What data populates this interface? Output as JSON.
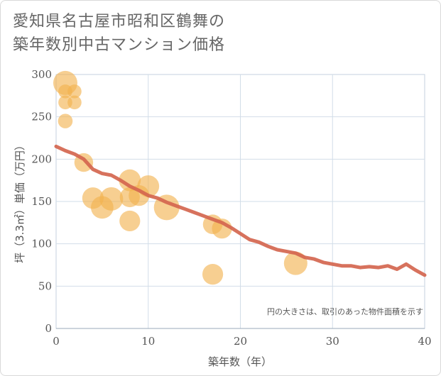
{
  "title_lines": [
    "愛知県名古屋市昭和区鶴舞の",
    "築年数別中古マンション価格"
  ],
  "chart_data": {
    "type": "scatter",
    "xlabel": "築年数（年）",
    "ylabel": "坪（3.3㎡）単価（万円）",
    "xlim": [
      0,
      40
    ],
    "ylim": [
      0,
      300
    ],
    "x_ticks": [
      0,
      10,
      20,
      30,
      40
    ],
    "y_ticks": [
      0,
      50,
      100,
      150,
      200,
      250,
      300
    ],
    "grid": true,
    "note": "円の大きさは、取引のあった物件面積を示す",
    "colors": {
      "bubble": "#f2b24d",
      "trend": "#d4664f",
      "grid": "#d2dde8"
    },
    "bubbles": [
      {
        "x": 1,
        "y": 290,
        "size": 3
      },
      {
        "x": 1,
        "y": 280,
        "size": 0.6
      },
      {
        "x": 2,
        "y": 280,
        "size": 0.6
      },
      {
        "x": 1,
        "y": 267,
        "size": 0.6
      },
      {
        "x": 2,
        "y": 267,
        "size": 0.6
      },
      {
        "x": 1,
        "y": 245,
        "size": 0.7
      },
      {
        "x": 3,
        "y": 196,
        "size": 1.5
      },
      {
        "x": 4,
        "y": 154,
        "size": 2.2
      },
      {
        "x": 5,
        "y": 143,
        "size": 2.5
      },
      {
        "x": 6,
        "y": 153,
        "size": 2.8
      },
      {
        "x": 8,
        "y": 175,
        "size": 2.3
      },
      {
        "x": 8,
        "y": 155,
        "size": 1.8
      },
      {
        "x": 9,
        "y": 157,
        "size": 2.0
      },
      {
        "x": 10,
        "y": 168,
        "size": 2.3
      },
      {
        "x": 8,
        "y": 127,
        "size": 2.0
      },
      {
        "x": 12,
        "y": 143,
        "size": 3.5
      },
      {
        "x": 17,
        "y": 123,
        "size": 1.7
      },
      {
        "x": 18,
        "y": 118,
        "size": 1.8
      },
      {
        "x": 17,
        "y": 64,
        "size": 2.0
      },
      {
        "x": 26,
        "y": 77,
        "size": 2.8
      }
    ],
    "trend": {
      "x": [
        0,
        1,
        2,
        3,
        4,
        5,
        6,
        7,
        8,
        9,
        10,
        11,
        12,
        13,
        14,
        15,
        16,
        17,
        18,
        19,
        20,
        21,
        22,
        23,
        24,
        25,
        26,
        27,
        28,
        29,
        30,
        31,
        32,
        33,
        34,
        35,
        36,
        37,
        38,
        39,
        40
      ],
      "y": [
        215,
        210,
        206,
        200,
        188,
        183,
        181,
        175,
        168,
        163,
        157,
        154,
        149,
        145,
        141,
        137,
        133,
        129,
        125,
        119,
        112,
        105,
        102,
        97,
        93,
        91,
        89,
        84,
        82,
        78,
        76,
        74,
        74,
        72,
        73,
        72,
        74,
        70,
        76,
        69,
        63
      ]
    }
  }
}
